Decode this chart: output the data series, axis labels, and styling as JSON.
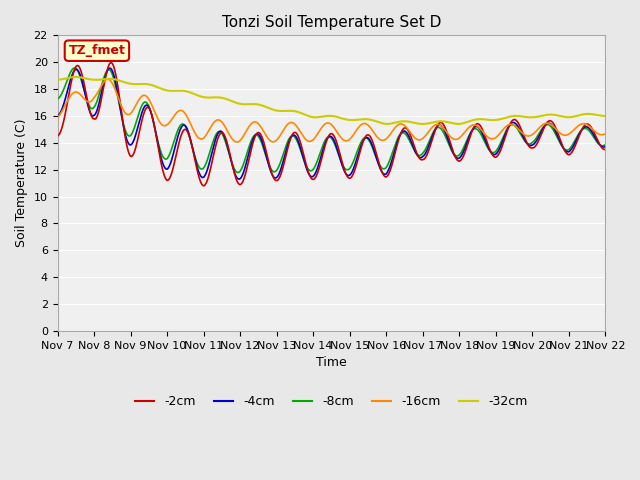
{
  "title": "Tonzi Soil Temperature Set D",
  "xlabel": "Time",
  "ylabel": "Soil Temperature (C)",
  "ylim": [
    0,
    22
  ],
  "yticks": [
    0,
    2,
    4,
    6,
    8,
    10,
    12,
    14,
    16,
    18,
    20,
    22
  ],
  "bg_color": "#e8e8e8",
  "plot_bg": "#f0f0f0",
  "annotation_text": "TZ_fmet",
  "annotation_bg": "#ffffcc",
  "annotation_border": "#cc0000",
  "legend": [
    {
      "label": "-2cm",
      "color": "#cc0000"
    },
    {
      "label": "-4cm",
      "color": "#0000cc"
    },
    {
      "label": "-8cm",
      "color": "#00aa00"
    },
    {
      "label": "-16cm",
      "color": "#ff8800"
    },
    {
      "label": "-32cm",
      "color": "#cccc00"
    }
  ],
  "xtick_labels": [
    "Nov 7",
    "Nov 8",
    "Nov 9",
    "Nov 10",
    "Nov 11",
    "Nov 12",
    "Nov 13",
    "Nov 14",
    "Nov 15",
    "Nov 16",
    "Nov 17",
    "Nov 18",
    "Nov 19",
    "Nov 20",
    "Nov 21",
    "Nov 22"
  ],
  "days_key": [
    0,
    1,
    2,
    3,
    4,
    5,
    6,
    7,
    8,
    9,
    10,
    11,
    12,
    13,
    14,
    15
  ],
  "base_2": [
    16.0,
    18.8,
    15.5,
    13.2,
    12.8,
    12.8,
    13.0,
    13.0,
    13.0,
    13.0,
    14.2,
    14.0,
    14.2,
    14.8,
    14.2,
    14.5
  ],
  "base_4": [
    17.0,
    18.5,
    15.8,
    13.8,
    13.2,
    13.0,
    13.0,
    13.0,
    13.0,
    13.0,
    14.2,
    14.0,
    14.2,
    14.8,
    14.2,
    14.5
  ],
  "base_8": [
    18.0,
    18.5,
    16.2,
    14.2,
    13.5,
    13.2,
    13.2,
    13.2,
    13.2,
    13.2,
    14.2,
    14.0,
    14.2,
    14.8,
    14.2,
    14.5
  ],
  "base_16": [
    16.2,
    18.2,
    17.0,
    16.0,
    15.0,
    14.8,
    14.8,
    14.8,
    14.8,
    14.8,
    14.8,
    14.8,
    14.8,
    15.0,
    15.0,
    15.0
  ],
  "base_32": [
    18.8,
    18.8,
    18.5,
    18.0,
    17.5,
    17.0,
    16.5,
    16.0,
    15.8,
    15.5,
    15.5,
    15.5,
    15.8,
    16.0,
    16.0,
    16.1
  ],
  "amp_2_pts": [
    0,
    1,
    2,
    3,
    4,
    15
  ],
  "amp_2_vals": [
    1.5,
    3.0,
    2.5,
    2.0,
    2.0,
    1.0
  ],
  "amp_4_pts": [
    0,
    1,
    2,
    3,
    4,
    15
  ],
  "amp_4_vals": [
    1.0,
    2.5,
    2.0,
    1.8,
    1.8,
    0.8
  ],
  "amp_8_pts": [
    0,
    1,
    2,
    3,
    4,
    15
  ],
  "amp_8_vals": [
    0.8,
    2.0,
    1.8,
    1.5,
    1.5,
    0.7
  ],
  "amp_16_pts": [
    0,
    1,
    2,
    3,
    4,
    15
  ],
  "amp_16_vals": [
    0.4,
    1.0,
    1.0,
    0.8,
    0.8,
    0.4
  ],
  "amp_32_pts": [
    0,
    15
  ],
  "amp_32_vals": [
    0.1,
    0.1
  ]
}
